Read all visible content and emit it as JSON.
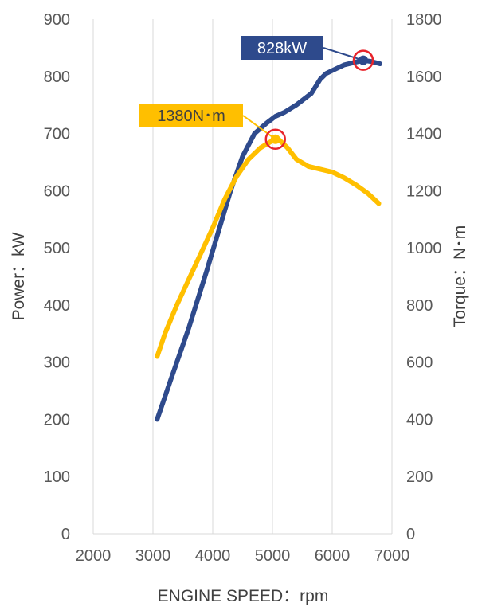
{
  "chart_data": {
    "type": "line",
    "title": "",
    "xlabel": "ENGINE SPEED：rpm",
    "ylabel": "Power：kW",
    "y2label": "Torque：N･m",
    "xlim": [
      2000,
      7000
    ],
    "ylim": [
      0,
      900
    ],
    "y2lim": [
      0,
      1800
    ],
    "x_ticks": [
      "2000",
      "3000",
      "4000",
      "5000",
      "6000",
      "7000"
    ],
    "y_ticks": [
      "0",
      "100",
      "200",
      "300",
      "400",
      "500",
      "600",
      "700",
      "800",
      "900"
    ],
    "y2_ticks": [
      "0",
      "200",
      "400",
      "600",
      "800",
      "1000",
      "1200",
      "1400",
      "1600",
      "1800"
    ],
    "grid": "vertical",
    "series": [
      {
        "axis": "left",
        "color": "#2E4A8C",
        "x": [
          3070,
          3300,
          3600,
          3900,
          4100,
          4300,
          4500,
          4700,
          4900,
          5050,
          5200,
          5400,
          5650,
          5800,
          5900,
          6000,
          6200,
          6400,
          6520,
          6650,
          6800
        ],
        "values": [
          200,
          270,
          360,
          460,
          530,
          600,
          660,
          700,
          718,
          730,
          737,
          750,
          770,
          795,
          805,
          810,
          820,
          825,
          828,
          826,
          822
        ]
      },
      {
        "axis": "right",
        "color": "#FFBF00",
        "x": [
          3070,
          3200,
          3400,
          3600,
          3800,
          4000,
          4200,
          4400,
          4600,
          4800,
          5000,
          5100,
          5250,
          5400,
          5600,
          5800,
          6000,
          6200,
          6400,
          6600,
          6780
        ],
        "values": [
          620,
          700,
          800,
          890,
          980,
          1070,
          1170,
          1250,
          1310,
          1350,
          1375,
          1380,
          1350,
          1310,
          1285,
          1275,
          1265,
          1245,
          1220,
          1190,
          1155
        ]
      }
    ],
    "annotations": [
      {
        "text": "828kW",
        "series": 0,
        "x": 6520,
        "y": 828,
        "bg": "#2E4A8C",
        "color": "#ffffff"
      },
      {
        "text": "1380N･m",
        "series": 1,
        "x": 5050,
        "y": 1380,
        "bg": "#FFBF00",
        "color": "#404040"
      }
    ]
  }
}
